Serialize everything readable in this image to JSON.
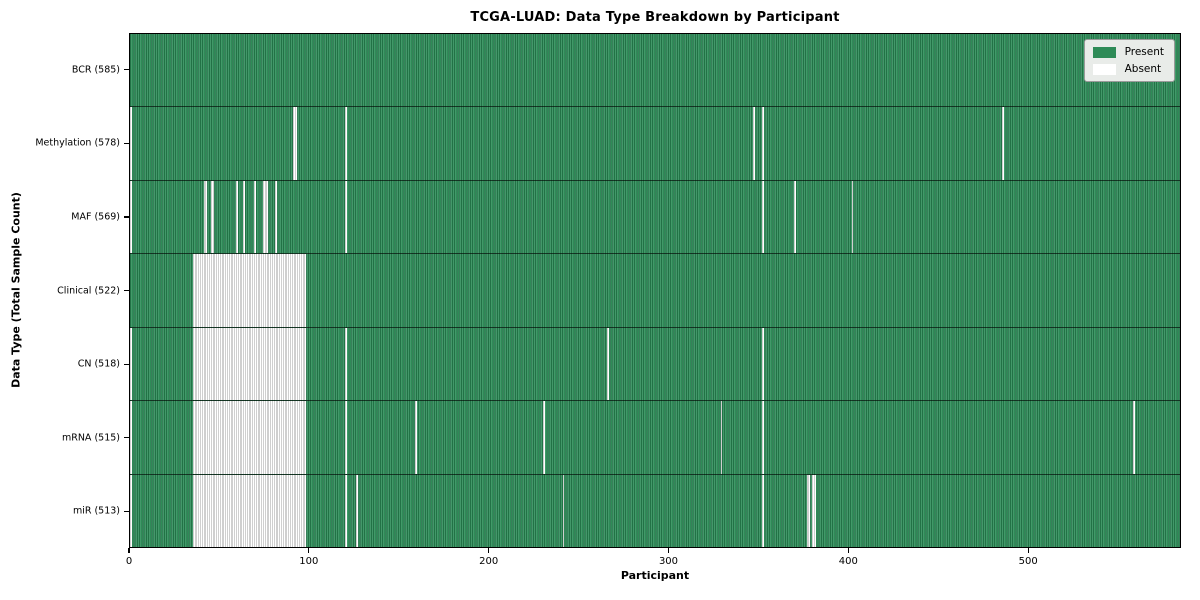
{
  "chart_data": {
    "type": "heatmap",
    "title": "TCGA-LUAD: Data Type Breakdown by Participant",
    "xlabel": "Participant",
    "ylabel": "Data Type (Total Sample Count)",
    "x_ticks": [
      0,
      100,
      200,
      300,
      400,
      500
    ],
    "n_participants": 585,
    "legend_position": "upper-right",
    "grid": "row-separator-lines",
    "legend": [
      {
        "label": "Present",
        "color": "#2e8b57"
      },
      {
        "label": "Absent",
        "color": "#ffffff"
      }
    ],
    "rows": [
      {
        "label": "BCR (585)",
        "data_type": "BCR",
        "sample_count": 585,
        "absent_participants": []
      },
      {
        "label": "Methylation (578)",
        "data_type": "Methylation",
        "sample_count": 578,
        "absent_participants": [
          0,
          91,
          92,
          120,
          347,
          352,
          486
        ]
      },
      {
        "label": "MAF (569)",
        "data_type": "MAF",
        "sample_count": 569,
        "absent_participants": [
          0,
          41,
          42,
          45,
          46,
          59,
          63,
          69,
          74,
          75,
          76,
          81,
          120,
          352,
          370,
          402
        ]
      },
      {
        "label": "Clinical (522)",
        "data_type": "Clinical",
        "sample_count": 522,
        "absent_participants": [
          [
            35,
            97
          ]
        ]
      },
      {
        "label": "CN (518)",
        "data_type": "CN",
        "sample_count": 518,
        "absent_participants": [
          0,
          [
            35,
            97
          ],
          120,
          266,
          352
        ]
      },
      {
        "label": "mRNA (515)",
        "data_type": "mRNA",
        "sample_count": 515,
        "absent_participants": [
          0,
          [
            35,
            97
          ],
          120,
          159,
          230,
          329,
          352,
          559
        ]
      },
      {
        "label": "miR (513)",
        "data_type": "miR",
        "sample_count": 513,
        "absent_participants": [
          0,
          [
            35,
            97
          ],
          120,
          126,
          241,
          352,
          377,
          378,
          380,
          381
        ]
      }
    ]
  },
  "colors": {
    "present_green": "#2e8b57",
    "present_stripe_light": "#58a47d",
    "present_stripe_dark": "#175a36",
    "absent_white": "#ffffff",
    "absent_stripe_gray": "#9f9f9f",
    "legend_background": "#e9ece9",
    "legend_border": "#9a9a9a",
    "axis_color": "#000000"
  }
}
